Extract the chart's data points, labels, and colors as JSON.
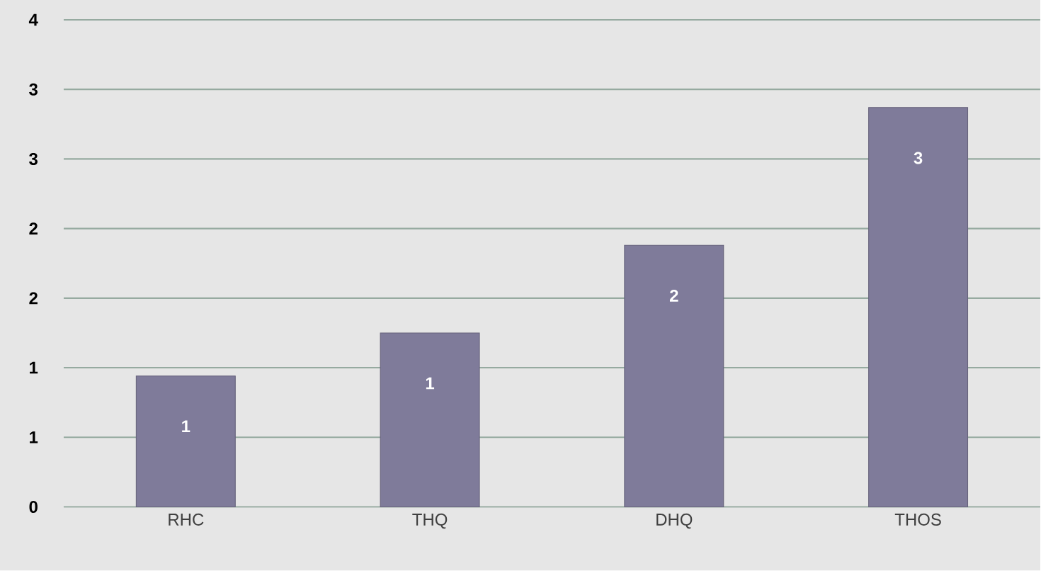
{
  "chart_data": {
    "type": "bar",
    "categories": [
      "RHC",
      "THQ",
      "DHQ",
      "THOS"
    ],
    "values": [
      0.94,
      1.25,
      1.88,
      2.87
    ],
    "value_labels": [
      "1",
      "1",
      "2",
      "3"
    ],
    "color": "#7f7b9a",
    "ylim": [
      0,
      3.5
    ],
    "yticks": [
      0,
      {
        "value": 0.5,
        "label": "1"
      },
      1,
      {
        "value": 1.5,
        "label": "2"
      },
      2,
      {
        "value": 2.5,
        "label": "3"
      },
      3,
      {
        "value": 3.5,
        "label": "4"
      }
    ],
    "grid": "y"
  }
}
